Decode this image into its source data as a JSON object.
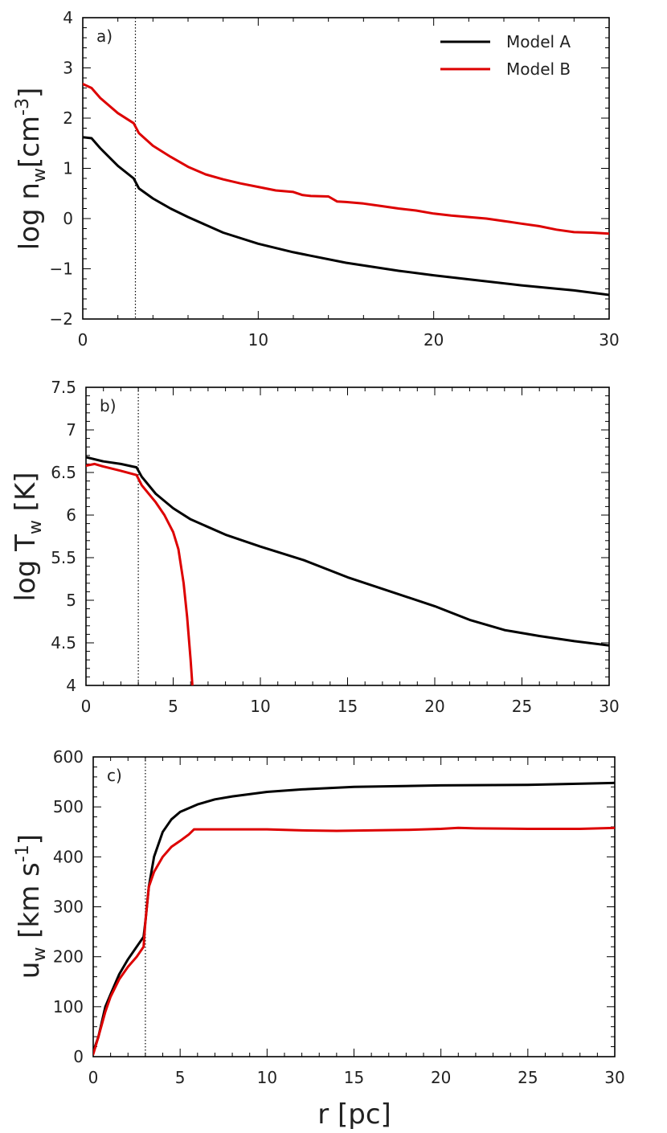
{
  "chart_data": [
    {
      "type": "line",
      "panel_label": "a)",
      "ylabel": "log n_w[cm^-3]",
      "ylabel_parts": {
        "pre": "log n",
        "sub": "w",
        "mid": "[cm",
        "sup": "-3",
        "post": "]"
      },
      "xlabel": "",
      "xlim": [
        0,
        30
      ],
      "ylim": [
        -2,
        4
      ],
      "xticks": [
        0,
        10,
        20,
        30
      ],
      "yticks": [
        -2,
        -1,
        0,
        1,
        2,
        3,
        4
      ],
      "ytick_labels": [
        "−2",
        "−1",
        "0",
        "1",
        "2",
        "3",
        "4"
      ],
      "vline_x": 3,
      "legend": {
        "placement": "top-right",
        "entries": [
          "Model A",
          "Model B"
        ]
      },
      "series": [
        {
          "name": "Model A",
          "color": "#000000",
          "x": [
            0,
            0.5,
            1,
            2,
            2.9,
            3.2,
            4,
            5,
            6,
            8,
            10,
            12,
            15,
            18,
            20,
            22,
            25,
            28,
            30
          ],
          "y": [
            1.62,
            1.6,
            1.4,
            1.05,
            0.8,
            0.6,
            0.4,
            0.2,
            0.03,
            -0.28,
            -0.5,
            -0.67,
            -0.88,
            -1.04,
            -1.13,
            -1.21,
            -1.33,
            -1.43,
            -1.52
          ]
        },
        {
          "name": "Model B",
          "color": "#dd0000",
          "x": [
            0,
            0.5,
            1,
            2,
            2.9,
            3.2,
            4,
            5,
            6,
            7,
            8,
            9,
            10,
            11,
            12,
            12.5,
            13,
            14,
            14.5,
            15,
            16,
            17,
            18,
            19,
            20,
            21,
            22,
            23,
            24,
            25,
            26,
            27,
            28,
            29,
            30
          ],
          "y": [
            2.68,
            2.6,
            2.4,
            2.1,
            1.9,
            1.7,
            1.45,
            1.23,
            1.03,
            0.88,
            0.78,
            0.7,
            0.63,
            0.56,
            0.53,
            0.47,
            0.45,
            0.44,
            0.34,
            0.33,
            0.3,
            0.25,
            0.2,
            0.16,
            0.1,
            0.06,
            0.03,
            0.0,
            -0.05,
            -0.1,
            -0.15,
            -0.22,
            -0.27,
            -0.28,
            -0.3
          ]
        }
      ]
    },
    {
      "type": "line",
      "panel_label": "b)",
      "ylabel": "log T_w [K]",
      "ylabel_parts": {
        "pre": "log T",
        "sub": "w",
        "post": " [K]"
      },
      "xlabel": "",
      "xlim": [
        0,
        30
      ],
      "ylim": [
        4,
        7.5
      ],
      "xticks": [
        0,
        5,
        10,
        15,
        20,
        25,
        30
      ],
      "yticks": [
        4,
        4.5,
        5,
        5.5,
        6,
        6.5,
        7,
        7.5
      ],
      "ytick_labels": [
        "4",
        "4.5",
        "5",
        "5.5",
        "6",
        "6.5",
        "7",
        "7.5"
      ],
      "vline_x": 3,
      "series": [
        {
          "name": "Model A",
          "color": "#000000",
          "x": [
            0,
            1,
            2,
            2.9,
            3.2,
            4,
            5,
            6,
            8,
            10,
            12.5,
            15,
            17.5,
            20,
            22,
            24,
            26,
            28,
            30
          ],
          "y": [
            6.68,
            6.63,
            6.6,
            6.56,
            6.45,
            6.25,
            6.08,
            5.95,
            5.77,
            5.63,
            5.47,
            5.27,
            5.1,
            4.93,
            4.77,
            4.65,
            4.58,
            4.52,
            4.47
          ]
        },
        {
          "name": "Model B",
          "color": "#dd0000",
          "x": [
            0,
            0.5,
            1,
            2,
            2.9,
            3.2,
            4,
            4.5,
            5,
            5.3,
            5.6,
            5.8,
            6.0,
            6.1
          ],
          "y": [
            6.58,
            6.6,
            6.57,
            6.52,
            6.47,
            6.35,
            6.15,
            6.0,
            5.8,
            5.6,
            5.2,
            4.8,
            4.3,
            4.0
          ]
        }
      ]
    },
    {
      "type": "line",
      "panel_label": "c)",
      "ylabel": "u_w [km s^-1]",
      "ylabel_parts": {
        "pre": "u",
        "sub": "w",
        "mid": " [km s",
        "sup": "-1",
        "post": "]"
      },
      "xlabel": "r [pc]",
      "xlim": [
        0,
        30
      ],
      "ylim": [
        0,
        600
      ],
      "xticks": [
        0,
        5,
        10,
        15,
        20,
        25,
        30
      ],
      "yticks": [
        0,
        100,
        200,
        300,
        400,
        500,
        600
      ],
      "ytick_labels": [
        "0",
        "100",
        "200",
        "300",
        "400",
        "500",
        "600"
      ],
      "vline_x": 3,
      "series": [
        {
          "name": "Model A",
          "color": "#000000",
          "x": [
            0,
            0.3,
            0.7,
            1,
            1.5,
            2,
            2.5,
            2.9,
            3.0,
            3.2,
            3.5,
            4,
            4.5,
            5,
            6,
            7,
            8,
            10,
            12,
            15,
            20,
            25,
            30
          ],
          "y": [
            10,
            40,
            100,
            125,
            165,
            195,
            220,
            240,
            270,
            340,
            400,
            450,
            475,
            490,
            505,
            515,
            521,
            530,
            535,
            540,
            543,
            544,
            548
          ]
        },
        {
          "name": "Model B",
          "color": "#dd0000",
          "x": [
            0,
            0.3,
            0.7,
            1,
            1.5,
            2,
            2.5,
            2.9,
            3.0,
            3.2,
            3.5,
            4,
            4.5,
            5,
            5.5,
            5.8,
            6,
            8,
            10,
            12,
            14,
            16,
            18,
            20,
            21,
            22,
            25,
            28,
            30
          ],
          "y": [
            5,
            40,
            90,
            120,
            155,
            180,
            200,
            220,
            270,
            340,
            370,
            400,
            420,
            432,
            445,
            455,
            455,
            455,
            455,
            453,
            452,
            453,
            454,
            456,
            458,
            457,
            456,
            456,
            458
          ]
        }
      ]
    }
  ]
}
